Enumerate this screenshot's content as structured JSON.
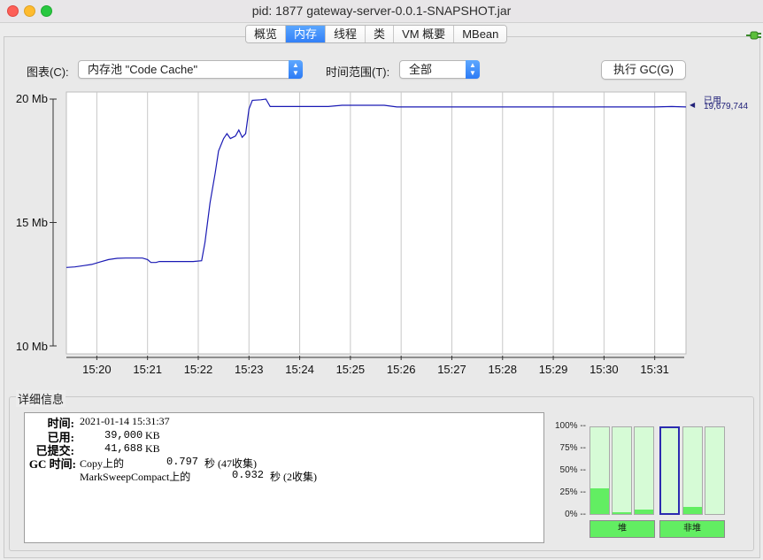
{
  "window": {
    "title": "pid: 1877 gateway-server-0.0.1-SNAPSHOT.jar"
  },
  "tabs": [
    "概览",
    "内存",
    "线程",
    "类",
    "VM 概要",
    "MBean"
  ],
  "active_tab": "内存",
  "controls": {
    "chart_label": "图表(C):",
    "chart_value": "内存池 \"Code Cache\"",
    "range_label": "时间范围(T):",
    "range_value": "全部",
    "gc_button": "执行 GC(G)"
  },
  "chart_data": {
    "type": "line",
    "y_ticks": [
      "20 Mb",
      "15 Mb",
      "10 Mb"
    ],
    "ylim": [
      10,
      20
    ],
    "x_ticks": [
      "15:20",
      "15:21",
      "15:22",
      "15:23",
      "15:24",
      "15:25",
      "15:26",
      "15:27",
      "15:28",
      "15:29",
      "15:30",
      "15:31"
    ],
    "xlim": [
      "15:19:24",
      "15:31:37"
    ],
    "series": [
      {
        "name": "已用",
        "color": "#1a1ab4",
        "last_value": "19,679,744",
        "points": [
          [
            "15:19:24",
            13.18
          ],
          [
            "15:19:34",
            13.2
          ],
          [
            "15:19:44",
            13.25
          ],
          [
            "15:19:54",
            13.3
          ],
          [
            "15:20:04",
            13.4
          ],
          [
            "15:20:14",
            13.5
          ],
          [
            "15:20:24",
            13.55
          ],
          [
            "15:20:34",
            13.56
          ],
          [
            "15:20:44",
            13.56
          ],
          [
            "15:20:54",
            13.56
          ],
          [
            "15:21:00",
            13.5
          ],
          [
            "15:21:04",
            13.38
          ],
          [
            "15:21:10",
            13.38
          ],
          [
            "15:21:14",
            13.42
          ],
          [
            "15:21:24",
            13.42
          ],
          [
            "15:21:34",
            13.42
          ],
          [
            "15:21:44",
            13.42
          ],
          [
            "15:21:54",
            13.42
          ],
          [
            "15:22:04",
            13.45
          ],
          [
            "15:22:08",
            14.2
          ],
          [
            "15:22:14",
            15.8
          ],
          [
            "15:22:20",
            17.0
          ],
          [
            "15:22:24",
            17.9
          ],
          [
            "15:22:30",
            18.4
          ],
          [
            "15:22:34",
            18.6
          ],
          [
            "15:22:38",
            18.4
          ],
          [
            "15:22:44",
            18.5
          ],
          [
            "15:22:48",
            18.75
          ],
          [
            "15:22:52",
            18.45
          ],
          [
            "15:22:56",
            18.6
          ],
          [
            "15:23:00",
            19.6
          ],
          [
            "15:23:04",
            19.95
          ],
          [
            "15:23:14",
            19.97
          ],
          [
            "15:23:20",
            20.0
          ],
          [
            "15:23:25",
            19.7
          ],
          [
            "15:24:00",
            19.7
          ],
          [
            "15:24:34",
            19.7
          ],
          [
            "15:24:50",
            19.75
          ],
          [
            "15:25:40",
            19.75
          ],
          [
            "15:25:55",
            19.68
          ],
          [
            "15:27:00",
            19.68
          ],
          [
            "15:28:00",
            19.68
          ],
          [
            "15:29:00",
            19.68
          ],
          [
            "15:30:00",
            19.68
          ],
          [
            "15:31:00",
            19.68
          ],
          [
            "15:31:20",
            19.7
          ],
          [
            "15:31:37",
            19.68
          ]
        ]
      }
    ],
    "grid": true,
    "legend": "right"
  },
  "details": {
    "section_title": "详细信息",
    "time_label": "时间:",
    "time_value": "2021-01-14 15:31:37",
    "used_label": "已用:",
    "used_value": "39,000",
    "used_unit": "KB",
    "committed_label": "已提交:",
    "committed_value": "41,688",
    "committed_unit": "KB",
    "gc_label": "GC 时间:",
    "gc_rows": [
      {
        "name": "Copy上的",
        "seconds": "0.797",
        "unit": "秒",
        "count": "(47收集)"
      },
      {
        "name": "MarkSweepCompact上的",
        "seconds": "0.932",
        "unit": "秒",
        "count": "(2收集)"
      }
    ]
  },
  "pools": {
    "pct_labels": [
      "100% --",
      "75% --",
      "50% --",
      "25% --",
      "0% --"
    ],
    "heap_label": "堆",
    "nonheap_label": "非堆",
    "heap_fill": [
      0.3,
      0.02,
      0.05
    ],
    "nonheap_fill": [
      0.0,
      0.08,
      0.0
    ],
    "selected_index": 3
  }
}
